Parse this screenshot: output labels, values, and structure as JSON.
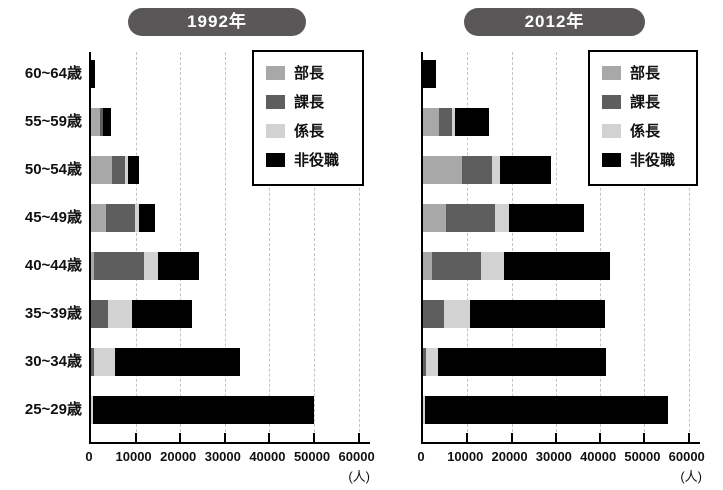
{
  "chart_data": [
    {
      "type": "bar",
      "orientation": "horizontal",
      "stacked": true,
      "title": "1992年",
      "unit_label": "(人)",
      "categories": [
        "60~64歳",
        "55~59歳",
        "50~54歳",
        "45~49歳",
        "40~44歳",
        "35~39歳",
        "30~34歳",
        "25~29歳"
      ],
      "x_ticks": [
        "0",
        "10000",
        "20000",
        "30000",
        "40000",
        "50000",
        "60000"
      ],
      "xlim": [
        0,
        63000
      ],
      "grid": "dashed-vertical",
      "series": [
        {
          "name": "部長",
          "color": "#a8a8a8",
          "values": [
            0,
            1900,
            4700,
            3400,
            700,
            0,
            0,
            0
          ]
        },
        {
          "name": "課長",
          "color": "#5e5e5e",
          "values": [
            0,
            700,
            2900,
            6400,
            11100,
            3800,
            700,
            0
          ]
        },
        {
          "name": "係長",
          "color": "#d2d2d2",
          "values": [
            0,
            200,
            700,
            900,
            3200,
            5500,
            4700,
            500
          ]
        },
        {
          "name": "非役職",
          "color": "#000000",
          "values": [
            900,
            1700,
            2500,
            3600,
            9200,
            13300,
            28000,
            49500
          ]
        }
      ]
    },
    {
      "type": "bar",
      "orientation": "horizontal",
      "stacked": true,
      "title": "2012年",
      "unit_label": "(人)",
      "categories": [
        "60~64歳",
        "55~59歳",
        "50~54歳",
        "45~49歳",
        "40~44歳",
        "35~39歳",
        "30~34歳",
        "25~29歳"
      ],
      "x_ticks": [
        "0",
        "10000",
        "20000",
        "30000",
        "40000",
        "50000",
        "60000"
      ],
      "xlim": [
        0,
        63000
      ],
      "grid": "dashed-vertical",
      "series": [
        {
          "name": "部長",
          "color": "#a8a8a8",
          "values": [
            0,
            3500,
            8700,
            5200,
            2000,
            0,
            0,
            0
          ]
        },
        {
          "name": "課長",
          "color": "#5e5e5e",
          "values": [
            0,
            3000,
            6800,
            11000,
            11000,
            4800,
            600,
            0
          ]
        },
        {
          "name": "係長",
          "color": "#d2d2d2",
          "values": [
            0,
            700,
            1800,
            3200,
            5200,
            5800,
            2800,
            500
          ]
        },
        {
          "name": "非役職",
          "color": "#000000",
          "values": [
            3000,
            7800,
            11700,
            17000,
            24100,
            30600,
            38000,
            54900
          ]
        }
      ]
    }
  ],
  "legend": {
    "position": "top-right",
    "items": [
      {
        "label": "部長",
        "color": "#a8a8a8"
      },
      {
        "label": "課長",
        "color": "#5e5e5e"
      },
      {
        "label": "係長",
        "color": "#d2d2d2"
      },
      {
        "label": "非役職",
        "color": "#000000"
      }
    ]
  }
}
